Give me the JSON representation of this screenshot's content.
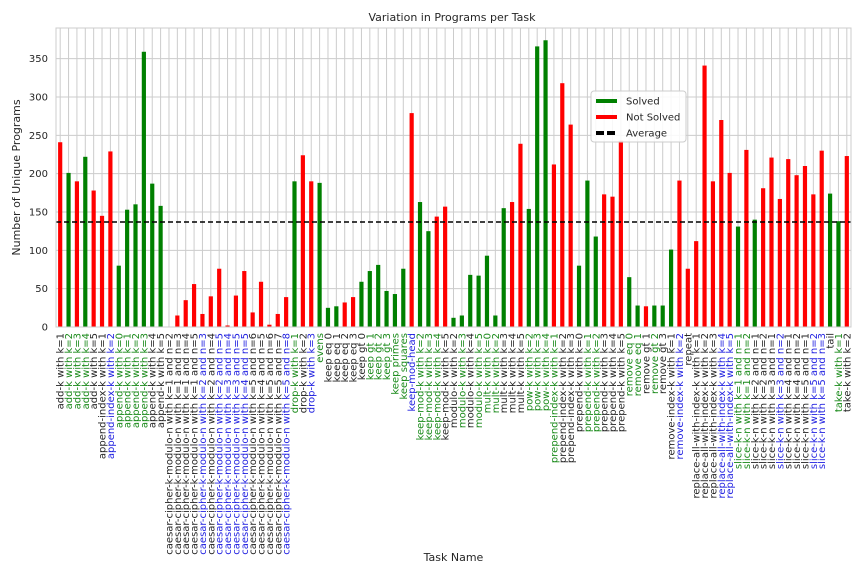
{
  "chart_data": {
    "type": "bar",
    "title": "Variation in Programs per Task",
    "xlabel": "Task Name",
    "ylabel": "Number of Unique Programs",
    "ylim": [
      0,
      390
    ],
    "yticks": [
      0,
      50,
      100,
      150,
      200,
      250,
      300,
      350
    ],
    "average": 137,
    "grid": true,
    "legend_position": "upper-right",
    "colors": {
      "solved": "#008000",
      "not_solved": "#ff0000",
      "average": "#000000",
      "label_default": "#262626",
      "label_solved": "#1a8a1a",
      "label_blue": "#1f1fe0"
    },
    "legend": [
      {
        "label": "Solved",
        "color": "#008000",
        "style": "solid"
      },
      {
        "label": "Not Solved",
        "color": "#ff0000",
        "style": "solid"
      },
      {
        "label": "Average",
        "color": "#000000",
        "style": "dashed"
      }
    ],
    "bars": [
      {
        "name": "add-k with k=1",
        "value": 241,
        "solved": false,
        "label_color": "default"
      },
      {
        "name": "add-k with k=2",
        "value": 201,
        "solved": true,
        "label_color": "solved"
      },
      {
        "name": "add-k with k=3",
        "value": 190,
        "solved": false,
        "label_color": "solved"
      },
      {
        "name": "add-k with k=4",
        "value": 222,
        "solved": true,
        "label_color": "solved"
      },
      {
        "name": "add-k with k=5",
        "value": 178,
        "solved": false,
        "label_color": "default"
      },
      {
        "name": "append-index-k with k=1",
        "value": 145,
        "solved": false,
        "label_color": "default"
      },
      {
        "name": "append-index-k with k=2",
        "value": 229,
        "solved": false,
        "label_color": "blue"
      },
      {
        "name": "append-k with k=0",
        "value": 80,
        "solved": true,
        "label_color": "solved"
      },
      {
        "name": "append-k with k=1",
        "value": 153,
        "solved": true,
        "label_color": "solved"
      },
      {
        "name": "append-k with k=2",
        "value": 160,
        "solved": true,
        "label_color": "solved"
      },
      {
        "name": "append-k with k=3",
        "value": 359,
        "solved": true,
        "label_color": "solved"
      },
      {
        "name": "append-k with k=4",
        "value": 187,
        "solved": true,
        "label_color": "default"
      },
      {
        "name": "append-k with k=5",
        "value": 158,
        "solved": true,
        "label_color": "default"
      },
      {
        "name": "caesar-cipher-k-modulo-n with k=1 and n=2",
        "value": 0,
        "solved": false,
        "label_color": "default"
      },
      {
        "name": "caesar-cipher-k-modulo-n with k=1 and n=3",
        "value": 15,
        "solved": false,
        "label_color": "default"
      },
      {
        "name": "caesar-cipher-k-modulo-n with k=1 and n=4",
        "value": 35,
        "solved": false,
        "label_color": "default"
      },
      {
        "name": "caesar-cipher-k-modulo-n with k=1 and n=5",
        "value": 56,
        "solved": false,
        "label_color": "default"
      },
      {
        "name": "caesar-cipher-k-modulo-n with k=2 and n=3",
        "value": 17,
        "solved": false,
        "label_color": "blue"
      },
      {
        "name": "caesar-cipher-k-modulo-n with k=2 and n=4",
        "value": 40,
        "solved": false,
        "label_color": "default"
      },
      {
        "name": "caesar-cipher-k-modulo-n with k=2 and n=5",
        "value": 76,
        "solved": false,
        "label_color": "blue"
      },
      {
        "name": "caesar-cipher-k-modulo-n with k=3 and n=4",
        "value": 2,
        "solved": false,
        "label_color": "blue"
      },
      {
        "name": "caesar-cipher-k-modulo-n with k=3 and n=5",
        "value": 41,
        "solved": false,
        "label_color": "blue"
      },
      {
        "name": "caesar-cipher-k-modulo-n with k=4 and n=5",
        "value": 73,
        "solved": false,
        "label_color": "blue"
      },
      {
        "name": "caesar-cipher-k-modulo-n with k=5 and n=6",
        "value": 19,
        "solved": false,
        "label_color": "default"
      },
      {
        "name": "caesar-cipher-k-modulo-n with k=4 and n=5",
        "value": 59,
        "solved": false,
        "label_color": "default"
      },
      {
        "name": "caesar-cipher-k-modulo-n with k=5 and n=6",
        "value": 3,
        "solved": false,
        "label_color": "default"
      },
      {
        "name": "caesar-cipher-k-modulo-n with k=5 and n=7",
        "value": 17,
        "solved": false,
        "label_color": "default"
      },
      {
        "name": "caesar-cipher-k-modulo-n with k=5 and n=8",
        "value": 39,
        "solved": false,
        "label_color": "blue"
      },
      {
        "name": "drop-k with k=1",
        "value": 190,
        "solved": true,
        "label_color": "solved"
      },
      {
        "name": "drop-k with k=2",
        "value": 224,
        "solved": false,
        "label_color": "default"
      },
      {
        "name": "drop-k with k=3",
        "value": 190,
        "solved": false,
        "label_color": "blue"
      },
      {
        "name": "evens",
        "value": 188,
        "solved": true,
        "label_color": "solved"
      },
      {
        "name": "keep eq 0",
        "value": 25,
        "solved": true,
        "label_color": "default"
      },
      {
        "name": "keep eq 1",
        "value": 27,
        "solved": true,
        "label_color": "default"
      },
      {
        "name": "keep eq 2",
        "value": 32,
        "solved": false,
        "label_color": "default"
      },
      {
        "name": "keep eq 3",
        "value": 39,
        "solved": false,
        "label_color": "default"
      },
      {
        "name": "keep gt 0",
        "value": 59,
        "solved": true,
        "label_color": "default"
      },
      {
        "name": "keep gt 1",
        "value": 73,
        "solved": true,
        "label_color": "solved"
      },
      {
        "name": "keep gt 2",
        "value": 81,
        "solved": true,
        "label_color": "solved"
      },
      {
        "name": "keep gt 3",
        "value": 47,
        "solved": true,
        "label_color": "solved"
      },
      {
        "name": "keep primes",
        "value": 43,
        "solved": true,
        "label_color": "solved"
      },
      {
        "name": "keep squares",
        "value": 76,
        "solved": true,
        "label_color": "solved"
      },
      {
        "name": "keep-mod-head",
        "value": 279,
        "solved": false,
        "label_color": "blue"
      },
      {
        "name": "keep-mod-k with k=2",
        "value": 163,
        "solved": true,
        "label_color": "solved"
      },
      {
        "name": "keep-mod-k with k=3",
        "value": 125,
        "solved": true,
        "label_color": "solved"
      },
      {
        "name": "keep-mod-k with k=4",
        "value": 144,
        "solved": false,
        "label_color": "solved"
      },
      {
        "name": "keep-mod-k with k=5",
        "value": 157,
        "solved": false,
        "label_color": "default"
      },
      {
        "name": "modulo-k with k=2",
        "value": 12,
        "solved": true,
        "label_color": "default"
      },
      {
        "name": "modulo-k with k=3",
        "value": 15,
        "solved": true,
        "label_color": "solved"
      },
      {
        "name": "modulo-k with k=4",
        "value": 68,
        "solved": true,
        "label_color": "default"
      },
      {
        "name": "modulo-k with k=5",
        "value": 67,
        "solved": true,
        "label_color": "solved"
      },
      {
        "name": "mult-k with k=0",
        "value": 93,
        "solved": true,
        "label_color": "solved"
      },
      {
        "name": "mult-k with k=2",
        "value": 15,
        "solved": true,
        "label_color": "solved"
      },
      {
        "name": "mult-k with k=3",
        "value": 155,
        "solved": true,
        "label_color": "default"
      },
      {
        "name": "mult-k with k=4",
        "value": 163,
        "solved": false,
        "label_color": "default"
      },
      {
        "name": "mult-k with k=5",
        "value": 239,
        "solved": false,
        "label_color": "default"
      },
      {
        "name": "pow-k with k=2",
        "value": 154,
        "solved": true,
        "label_color": "solved"
      },
      {
        "name": "pow-k with k=3",
        "value": 366,
        "solved": true,
        "label_color": "solved"
      },
      {
        "name": "pow-k with k=4",
        "value": 374,
        "solved": true,
        "label_color": "solved"
      },
      {
        "name": "prepend-index-k with k=1",
        "value": 212,
        "solved": false,
        "label_color": "solved"
      },
      {
        "name": "prepend-index-k with k=2",
        "value": 318,
        "solved": false,
        "label_color": "default"
      },
      {
        "name": "prepend-index-k with k=3",
        "value": 264,
        "solved": false,
        "label_color": "default"
      },
      {
        "name": "prepend-k with k=0",
        "value": 80,
        "solved": true,
        "label_color": "default"
      },
      {
        "name": "prepend-k with k=1",
        "value": 191,
        "solved": true,
        "label_color": "solved"
      },
      {
        "name": "prepend-k with k=2",
        "value": 118,
        "solved": true,
        "label_color": "solved"
      },
      {
        "name": "prepend-k with k=3",
        "value": 173,
        "solved": false,
        "label_color": "default"
      },
      {
        "name": "prepend-k with k=4",
        "value": 170,
        "solved": false,
        "label_color": "default"
      },
      {
        "name": "prepend-k with k=5",
        "value": 243,
        "solved": false,
        "label_color": "default"
      },
      {
        "name": "remove eq 0",
        "value": 65,
        "solved": true,
        "label_color": "solved"
      },
      {
        "name": "remove eq 1",
        "value": 28,
        "solved": true,
        "label_color": "solved"
      },
      {
        "name": "remove gt 1",
        "value": 27,
        "solved": false,
        "label_color": "default"
      },
      {
        "name": "remove gt 2",
        "value": 28,
        "solved": true,
        "label_color": "solved"
      },
      {
        "name": "remove gt 3",
        "value": 28,
        "solved": true,
        "label_color": "default"
      },
      {
        "name": "remove-index-k with k=1",
        "value": 101,
        "solved": true,
        "label_color": "default"
      },
      {
        "name": "remove-index-k with k=2",
        "value": 191,
        "solved": false,
        "label_color": "blue"
      },
      {
        "name": "repeat",
        "value": 76,
        "solved": false,
        "label_color": "default"
      },
      {
        "name": "replace-all-with-index-k with k=1",
        "value": 112,
        "solved": false,
        "label_color": "default"
      },
      {
        "name": "replace-all-with-index-k with k=2",
        "value": 341,
        "solved": false,
        "label_color": "default"
      },
      {
        "name": "replace-all-with-index-k with k=3",
        "value": 190,
        "solved": false,
        "label_color": "default"
      },
      {
        "name": "replace-all-with-index-k with k=4",
        "value": 270,
        "solved": false,
        "label_color": "blue"
      },
      {
        "name": "replace-all-with-index-k with k=5",
        "value": 201,
        "solved": false,
        "label_color": "blue"
      },
      {
        "name": "slice-k-n with k=1 and n=1",
        "value": 131,
        "solved": true,
        "label_color": "solved"
      },
      {
        "name": "slice-k-n with k=1 and n=2",
        "value": 231,
        "solved": false,
        "label_color": "solved"
      },
      {
        "name": "slice-k-n with k=2 and n=1",
        "value": 140,
        "solved": true,
        "label_color": "default"
      },
      {
        "name": "slice-k-n with k=2 and n=2",
        "value": 181,
        "solved": false,
        "label_color": "default"
      },
      {
        "name": "slice-k-n with k=3 and n=1",
        "value": 221,
        "solved": false,
        "label_color": "default"
      },
      {
        "name": "slice-k-n with k=3 and n=2",
        "value": 167,
        "solved": false,
        "label_color": "blue"
      },
      {
        "name": "slice-k-n with k=4 and n=1",
        "value": 219,
        "solved": false,
        "label_color": "default"
      },
      {
        "name": "slice-k-n with k=4 and n=2",
        "value": 198,
        "solved": false,
        "label_color": "default"
      },
      {
        "name": "slice-k-n with k=5 and n=1",
        "value": 210,
        "solved": false,
        "label_color": "default"
      },
      {
        "name": "slice-k-n with k=5 and n=2",
        "value": 173,
        "solved": false,
        "label_color": "blue"
      },
      {
        "name": "slice-k-n with k=5 and n=3",
        "value": 230,
        "solved": false,
        "label_color": "blue"
      },
      {
        "name": "tail",
        "value": 174,
        "solved": true,
        "label_color": "default"
      },
      {
        "name": "take-k with k=1",
        "value": 138,
        "solved": true,
        "label_color": "solved"
      },
      {
        "name": "take-k with k=2",
        "value": 223,
        "solved": false,
        "label_color": "default"
      }
    ]
  }
}
